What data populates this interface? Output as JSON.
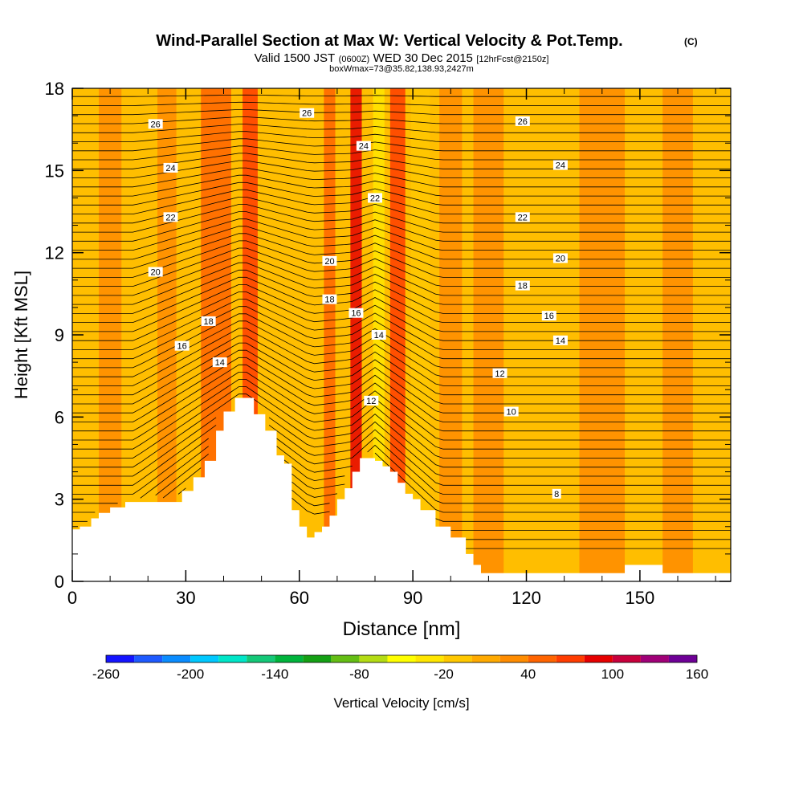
{
  "chart_data": {
    "type": "heatmap",
    "title": "Wind-Parallel Section at Max W: Vertical Velocity & Pot.Temp.",
    "title_suffix": "(C)",
    "subtitle_parts": [
      "Valid 1500 JST",
      "(0600Z)",
      "WED 30 Dec 2015",
      "[12hrFcst@2150z]"
    ],
    "subtitle2": "boxWmax=73@35.82,138.93,2427m",
    "xlabel": "Distance [nm]",
    "ylabel": "Height [Kft MSL]",
    "xlim": [
      0,
      174
    ],
    "ylim": [
      0,
      18
    ],
    "x_ticks": [
      0,
      30,
      60,
      90,
      120,
      150
    ],
    "y_ticks": [
      0,
      3,
      6,
      9,
      12,
      15,
      18
    ],
    "colorbar": {
      "label": "Vertical Velocity [cm/s]",
      "ticks": [
        "-260",
        "-200",
        "-140",
        "-80",
        "-20",
        "40",
        "100",
        "160"
      ],
      "range": [
        -260,
        160
      ],
      "colors": [
        "#1414ff",
        "#1e5aff",
        "#0a8cff",
        "#00c8ff",
        "#00e6c8",
        "#14c878",
        "#00b43c",
        "#14a014",
        "#64be14",
        "#b4dc14",
        "#ffff00",
        "#ffe600",
        "#ffc800",
        "#ffaa00",
        "#ff8c00",
        "#ff6400",
        "#ff3c00",
        "#e60000",
        "#c8003c",
        "#a00078",
        "#6e0096"
      ]
    },
    "terrain_kft": {
      "x": [
        0,
        2,
        5,
        7,
        10,
        14,
        18,
        22,
        26,
        29,
        32,
        35,
        38,
        40,
        43,
        46,
        48,
        51,
        54,
        56,
        58,
        60,
        62,
        64,
        66,
        68,
        70,
        72,
        74,
        76,
        78,
        80,
        82,
        84,
        86,
        88,
        90,
        92,
        96,
        100,
        104,
        106,
        108,
        115,
        120,
        130,
        140,
        145,
        146,
        155,
        156,
        165,
        174
      ],
      "h": [
        1.9,
        2.0,
        2.3,
        2.5,
        2.7,
        2.9,
        2.9,
        2.9,
        2.9,
        3.3,
        3.8,
        4.4,
        5.5,
        6.2,
        6.7,
        6.7,
        6.1,
        5.5,
        4.6,
        4.3,
        2.6,
        2.0,
        1.6,
        1.8,
        2.0,
        2.4,
        3.0,
        3.4,
        4.0,
        4.5,
        4.5,
        4.4,
        4.2,
        4.0,
        3.6,
        3.2,
        3.0,
        2.6,
        2.0,
        1.6,
        1.0,
        0.6,
        0.3,
        0.3,
        0.3,
        0.3,
        0.3,
        0.3,
        0.6,
        0.6,
        0.3,
        0.3,
        0.3
      ]
    },
    "velocity_plumes": [
      {
        "x": 38,
        "width": 8,
        "value": 50
      },
      {
        "x": 47,
        "width": 4,
        "value": 60
      },
      {
        "x": 68,
        "width": 3,
        "value": 45
      },
      {
        "x": 75,
        "width": 3,
        "value": 80
      },
      {
        "x": 81,
        "width": 3,
        "value": -30
      },
      {
        "x": 86,
        "width": 4,
        "value": 70
      },
      {
        "x": 92,
        "width": 5,
        "value": -20
      },
      {
        "x": 100,
        "width": 6,
        "value": 25
      },
      {
        "x": 110,
        "width": 8,
        "value": 35
      },
      {
        "x": 140,
        "width": 12,
        "value": 35
      },
      {
        "x": 25,
        "width": 5,
        "value": 30
      },
      {
        "x": 10,
        "width": 6,
        "value": 30
      },
      {
        "x": 160,
        "width": 8,
        "value": 30
      }
    ],
    "theta_contours_degC": [
      8,
      10,
      12,
      14,
      16,
      18,
      20,
      22,
      24,
      26
    ],
    "contour_labels": [
      {
        "text": "26",
        "x": 22,
        "y": 16.7
      },
      {
        "text": "26",
        "x": 62,
        "y": 17.1
      },
      {
        "text": "26",
        "x": 119,
        "y": 16.8
      },
      {
        "text": "24",
        "x": 26,
        "y": 15.1
      },
      {
        "text": "24",
        "x": 77,
        "y": 15.9
      },
      {
        "text": "24",
        "x": 129,
        "y": 15.2
      },
      {
        "text": "22",
        "x": 26,
        "y": 13.3
      },
      {
        "text": "22",
        "x": 80,
        "y": 14.0
      },
      {
        "text": "22",
        "x": 119,
        "y": 13.3
      },
      {
        "text": "20",
        "x": 22,
        "y": 11.3
      },
      {
        "text": "20",
        "x": 68,
        "y": 11.7
      },
      {
        "text": "20",
        "x": 129,
        "y": 11.8
      },
      {
        "text": "18",
        "x": 36,
        "y": 9.5
      },
      {
        "text": "18",
        "x": 68,
        "y": 10.3
      },
      {
        "text": "18",
        "x": 119,
        "y": 10.8
      },
      {
        "text": "16",
        "x": 29,
        "y": 8.6
      },
      {
        "text": "16",
        "x": 75,
        "y": 9.8
      },
      {
        "text": "16",
        "x": 126,
        "y": 9.7
      },
      {
        "text": "14",
        "x": 39,
        "y": 8.0
      },
      {
        "text": "14",
        "x": 81,
        "y": 9.0
      },
      {
        "text": "14",
        "x": 129,
        "y": 8.8
      },
      {
        "text": "12",
        "x": 79,
        "y": 6.6
      },
      {
        "text": "12",
        "x": 113,
        "y": 7.6
      },
      {
        "text": "10",
        "x": 116,
        "y": 6.2
      },
      {
        "text": "8",
        "x": 128,
        "y": 3.2
      }
    ]
  }
}
